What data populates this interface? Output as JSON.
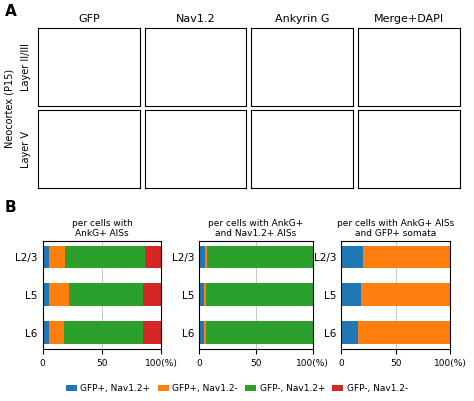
{
  "panel_labels": [
    "A",
    "B"
  ],
  "image_grid": {
    "column_labels": [
      "GFP",
      "Nav1.2",
      "Ankyrin G",
      "Merge+DAPI"
    ],
    "row_labels": [
      "Layer II/III",
      "Layer V"
    ],
    "side_label": "Neocortex (P15)"
  },
  "legend": "lower center",
  "chart_data": [
    {
      "type": "bar",
      "orientation": "horizontal",
      "stacked": true,
      "grid": true,
      "title": "per cells with\nAnkG+ AISs",
      "categories": [
        "L2/3",
        "L5",
        "L6"
      ],
      "series": [
        {
          "name": "GFP+, Nav1.2+",
          "values": [
            5,
            5,
            5
          ]
        },
        {
          "name": "GFP+, Nav1.2-",
          "values": [
            14,
            17,
            13
          ]
        },
        {
          "name": "GFP-, Nav1.2+",
          "values": [
            67,
            63,
            67
          ]
        },
        {
          "name": "GFP-, Nav1.2-",
          "values": [
            14,
            15,
            15
          ]
        }
      ],
      "xlim": [
        0,
        100
      ],
      "xticks": [
        0,
        50,
        {
          "value": 100,
          "label": "100(%)"
        }
      ]
    },
    {
      "type": "bar",
      "orientation": "horizontal",
      "stacked": true,
      "grid": true,
      "title": "per cells with AnkG+\nand Nav1.2+ AISs",
      "categories": [
        "L2/3",
        "L5",
        "L6"
      ],
      "series": [
        {
          "name": "GFP+, Nav1.2+",
          "values": [
            5,
            4,
            4
          ]
        },
        {
          "name": "GFP+, Nav1.2-",
          "values": [
            2,
            2,
            2
          ]
        },
        {
          "name": "GFP-, Nav1.2+",
          "values": [
            93,
            94,
            94
          ]
        },
        {
          "name": "GFP-, Nav1.2-",
          "values": [
            0,
            0,
            0
          ]
        }
      ],
      "xlim": [
        0,
        100
      ],
      "xticks": [
        0,
        50,
        {
          "value": 100,
          "label": "100(%)"
        }
      ]
    },
    {
      "type": "bar",
      "orientation": "horizontal",
      "stacked": true,
      "grid": true,
      "title": "per cells with AnkG+ AISs\nand GFP+ somata",
      "categories": [
        "L2/3",
        "L5",
        "L6"
      ],
      "series": [
        {
          "name": "GFP+, Nav1.2+",
          "values": [
            20,
            18,
            15
          ]
        },
        {
          "name": "GFP+, Nav1.2-",
          "values": [
            80,
            82,
            85
          ]
        },
        {
          "name": "GFP-, Nav1.2+",
          "values": [
            0,
            0,
            0
          ]
        },
        {
          "name": "GFP-, Nav1.2-",
          "values": [
            0,
            0,
            0
          ]
        }
      ],
      "xlim": [
        0,
        100
      ],
      "xticks": [
        0,
        50,
        {
          "value": 100,
          "label": "100(%)"
        }
      ]
    }
  ]
}
